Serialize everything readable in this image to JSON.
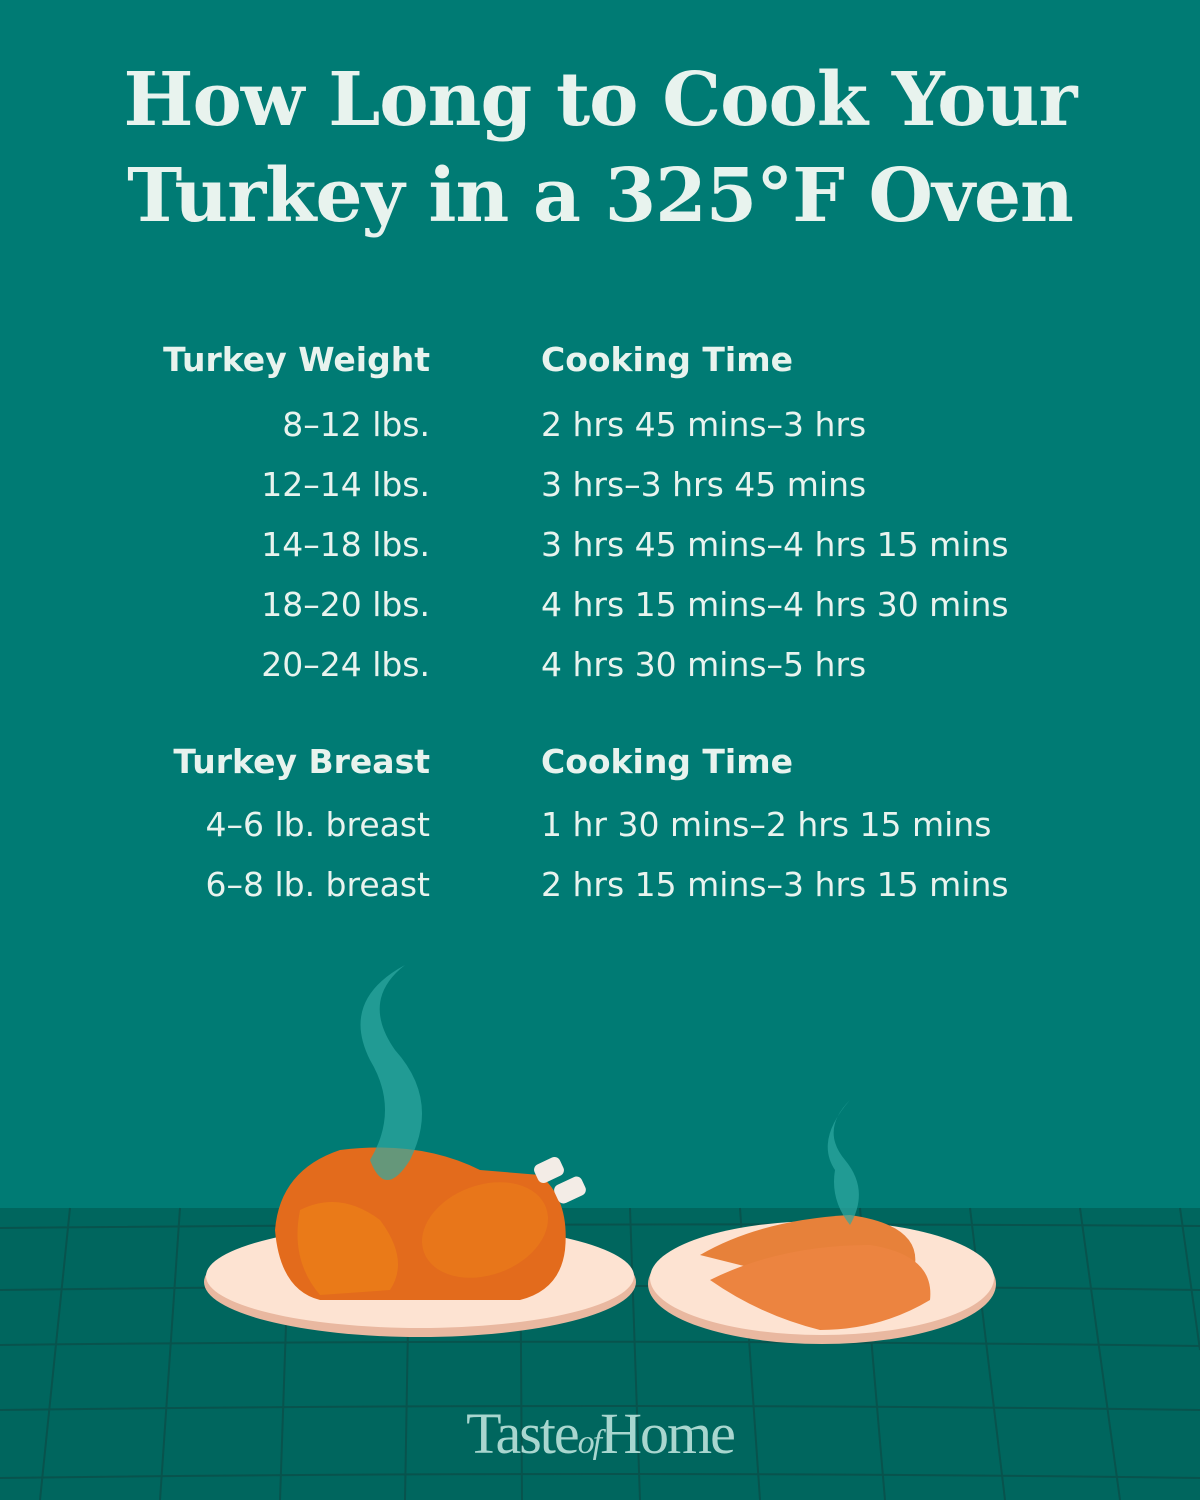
{
  "title": {
    "line1": "How Long to Cook Your",
    "line2": "Turkey in a 325°F Oven"
  },
  "whole_turkey": {
    "header_left": "Turkey Weight",
    "header_right": "Cooking Time",
    "rows": [
      {
        "weight": "8–12 lbs.",
        "time": "2 hrs 45 mins–3 hrs"
      },
      {
        "weight": "12–14 lbs.",
        "time": "3 hrs–3 hrs 45 mins"
      },
      {
        "weight": "14–18 lbs.",
        "time": "3 hrs 45 mins–4 hrs 15 mins"
      },
      {
        "weight": "18–20 lbs.",
        "time": "4 hrs 15 mins–4 hrs 30 mins"
      },
      {
        "weight": "20–24 lbs.",
        "time": "4 hrs 30 mins–5 hrs"
      }
    ]
  },
  "turkey_breast": {
    "header_left": "Turkey Breast",
    "header_right": "Cooking Time",
    "rows": [
      {
        "weight": "4–6 lb. breast",
        "time": "1 hr 30 mins–2 hrs 15 mins"
      },
      {
        "weight": "6–8 lb. breast",
        "time": "2 hrs 15 mins–3 hrs 15 mins"
      }
    ]
  },
  "logo": {
    "part1": "Taste",
    "part2": "of",
    "part3": "Home"
  },
  "colors": {
    "background": "#007b74",
    "table": "#00665e",
    "text": "#e8f3ee",
    "turkey": "#e8761a",
    "plate": "#fde3d2"
  }
}
